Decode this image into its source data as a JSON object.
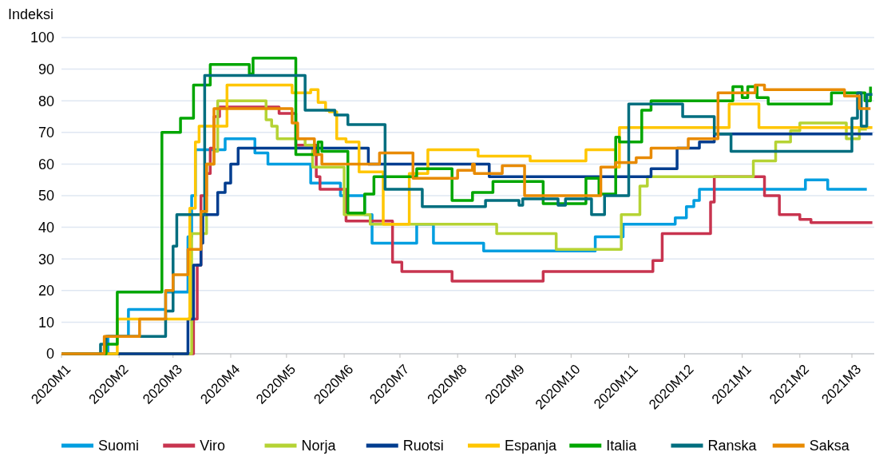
{
  "chart_data": {
    "type": "step",
    "ylabel": "Indeksi",
    "xlim": [
      "2020-01-01",
      "2021-03-13"
    ],
    "xticks": [
      {
        "value": "2020-01-01",
        "label": "2020M1"
      },
      {
        "value": "2020-02-01",
        "label": "2020M2"
      },
      {
        "value": "2020-03-01",
        "label": "2020M3"
      },
      {
        "value": "2020-04-01",
        "label": "2020M4"
      },
      {
        "value": "2020-05-01",
        "label": "2020M5"
      },
      {
        "value": "2020-06-01",
        "label": "2020M6"
      },
      {
        "value": "2020-07-01",
        "label": "2020M7"
      },
      {
        "value": "2020-08-01",
        "label": "2020M8"
      },
      {
        "value": "2020-09-01",
        "label": "2020M9"
      },
      {
        "value": "2020-10-01",
        "label": "2020M10"
      },
      {
        "value": "2020-11-01",
        "label": "2020M11"
      },
      {
        "value": "2020-12-01",
        "label": "2020M12"
      },
      {
        "value": "2021-01-01",
        "label": "2021M1"
      },
      {
        "value": "2021-02-01",
        "label": "2021M2"
      },
      {
        "value": "2021-03-01",
        "label": "2021M3"
      }
    ],
    "ylim": [
      0,
      100
    ],
    "yticks": [
      0,
      10,
      20,
      30,
      40,
      50,
      60,
      70,
      80,
      90,
      100
    ],
    "grid": "y",
    "legend": "bottom",
    "series": [
      {
        "name": "Suomi",
        "color": "#009ee0",
        "x": [
          "2020-01-01",
          "2020-01-26",
          "2020-02-06",
          "2020-02-26",
          "2020-03-09",
          "2020-03-11",
          "2020-03-13",
          "2020-03-29",
          "2020-04-14",
          "2020-04-21",
          "2020-05-14",
          "2020-05-30",
          "2020-06-12",
          "2020-06-16",
          "2020-07-10",
          "2020-07-19",
          "2020-08-15",
          "2020-10-14",
          "2020-10-29",
          "2020-11-26",
          "2020-12-02",
          "2020-12-06",
          "2020-12-09",
          "2021-02-04",
          "2021-02-16",
          "2021-03-09"
        ],
        "values": [
          0,
          5.5,
          14,
          19.5,
          37,
          50,
          64.5,
          68,
          63.5,
          60,
          54,
          50,
          44,
          35,
          41,
          35,
          32.5,
          37,
          41,
          43,
          46.5,
          48.5,
          52,
          55,
          52,
          52
        ]
      },
      {
        "name": "Viro",
        "color": "#c8344f",
        "x": [
          "2020-01-01",
          "2020-03-12",
          "2020-03-14",
          "2020-03-16",
          "2020-03-19",
          "2020-03-21",
          "2020-03-23",
          "2020-03-26",
          "2020-04-27",
          "2020-05-06",
          "2020-05-17",
          "2020-05-19",
          "2020-06-02",
          "2020-06-27",
          "2020-07-02",
          "2020-07-29",
          "2020-09-16",
          "2020-11-14",
          "2020-11-19",
          "2020-12-15",
          "2020-12-17",
          "2021-01-13",
          "2021-01-21",
          "2021-02-01",
          "2021-02-07",
          "2021-03-12"
        ],
        "values": [
          0,
          11,
          28,
          50,
          57,
          65,
          75,
          78,
          76,
          66,
          56,
          52,
          42,
          29,
          26,
          23,
          26,
          29.5,
          38,
          48,
          56,
          50,
          44,
          42.5,
          41.5,
          41.5
        ]
      },
      {
        "name": "Norja",
        "color": "#b5d334",
        "x": [
          "2020-01-01",
          "2020-03-11",
          "2020-03-19",
          "2020-03-23",
          "2020-03-25",
          "2020-04-20",
          "2020-04-23",
          "2020-04-26",
          "2020-05-11",
          "2020-05-15",
          "2020-06-01",
          "2020-06-15",
          "2020-08-22",
          "2020-09-23",
          "2020-10-28",
          "2020-11-07",
          "2020-11-11",
          "2021-01-07",
          "2021-01-19",
          "2021-01-27",
          "2021-02-01",
          "2021-02-26",
          "2021-03-05",
          "2021-03-09"
        ],
        "values": [
          0,
          38,
          60,
          64,
          80,
          74,
          72,
          68,
          66,
          59,
          44,
          41,
          38,
          33,
          44,
          53,
          56,
          61,
          67,
          70.5,
          73,
          68,
          71,
          71
        ]
      },
      {
        "name": "Ruotsi",
        "color": "#003d8f",
        "x": [
          "2020-01-01",
          "2020-03-09",
          "2020-03-12",
          "2020-03-16",
          "2020-03-17",
          "2020-03-25",
          "2020-03-29",
          "2020-04-01",
          "2020-04-05",
          "2020-06-14",
          "2020-08-18",
          "2020-11-13",
          "2020-11-27",
          "2020-12-09",
          "2020-12-17",
          "2021-03-12"
        ],
        "values": [
          0,
          11,
          28,
          35,
          44,
          51,
          54,
          60,
          65,
          60,
          56,
          58.5,
          65,
          67,
          69.5,
          69.5
        ]
      },
      {
        "name": "Espanja",
        "color": "#ffc600",
        "x": [
          "2020-01-01",
          "2020-01-31",
          "2020-03-10",
          "2020-03-13",
          "2020-03-15",
          "2020-03-30",
          "2020-05-04",
          "2020-05-14",
          "2020-05-18",
          "2020-05-22",
          "2020-05-24",
          "2020-05-28",
          "2020-06-02",
          "2020-06-09",
          "2020-06-22",
          "2020-07-06",
          "2020-07-16",
          "2020-08-12",
          "2020-09-09",
          "2020-10-09",
          "2020-10-25",
          "2020-10-27",
          "2020-12-25",
          "2021-01-10",
          "2021-03-12"
        ],
        "values": [
          0,
          11,
          46,
          67,
          72,
          85,
          82.5,
          83.5,
          79.5,
          77,
          76.5,
          68,
          67,
          57.5,
          41,
          57,
          64.5,
          62.5,
          61,
          64.5,
          59,
          71.5,
          79,
          71.5,
          71.5
        ]
      },
      {
        "name": "Italia",
        "color": "#00a600",
        "x": [
          "2020-01-01",
          "2020-01-25",
          "2020-01-31",
          "2020-02-24",
          "2020-03-05",
          "2020-03-12",
          "2020-03-21",
          "2020-04-11",
          "2020-04-13",
          "2020-05-06",
          "2020-05-16",
          "2020-05-18",
          "2020-05-20",
          "2020-06-03",
          "2020-06-12",
          "2020-06-17",
          "2020-07-10",
          "2020-07-29",
          "2020-08-09",
          "2020-08-20",
          "2020-09-16",
          "2020-10-09",
          "2020-10-16",
          "2020-10-25",
          "2020-10-27",
          "2020-11-08",
          "2020-11-13",
          "2020-12-27",
          "2021-01-01",
          "2021-01-04",
          "2021-01-09",
          "2021-01-15",
          "2021-02-18",
          "2021-03-08",
          "2021-03-11"
        ],
        "values": [
          0,
          3,
          19.5,
          70,
          74.5,
          85,
          91.5,
          88.5,
          93.5,
          63,
          63,
          67,
          64,
          44.5,
          50.5,
          56,
          58.5,
          48.5,
          51,
          54.5,
          47.5,
          55.5,
          50.5,
          68.5,
          67,
          77,
          80,
          84.5,
          81,
          84.5,
          81,
          79,
          82.5,
          80,
          84.5
        ]
      },
      {
        "name": "Ranska",
        "color": "#006e7f",
        "x": [
          "2020-01-01",
          "2020-01-22",
          "2020-01-25",
          "2020-02-26",
          "2020-03-01",
          "2020-03-03",
          "2020-03-18",
          "2020-05-11",
          "2020-05-27",
          "2020-06-03",
          "2020-06-23",
          "2020-07-13",
          "2020-08-16",
          "2020-09-03",
          "2020-09-05",
          "2020-09-24",
          "2020-09-28",
          "2020-10-12",
          "2020-10-19",
          "2020-11-01",
          "2020-11-30",
          "2020-12-17",
          "2020-12-26",
          "2021-03-01",
          "2021-03-04",
          "2021-03-06",
          "2021-03-09",
          "2021-03-12"
        ],
        "values": [
          0,
          3,
          5.5,
          13.5,
          34,
          44,
          88,
          77,
          75.5,
          72.5,
          52,
          46.5,
          48.5,
          47,
          49,
          47,
          49,
          44,
          50,
          79,
          75,
          69.5,
          64,
          74.5,
          82.5,
          72,
          82,
          82
        ]
      },
      {
        "name": "Saksa",
        "color": "#e88a00",
        "x": [
          "2020-01-01",
          "2020-01-24",
          "2020-02-12",
          "2020-02-26",
          "2020-03-01",
          "2020-03-09",
          "2020-03-16",
          "2020-03-19",
          "2020-03-23",
          "2020-05-04",
          "2020-05-07",
          "2020-05-16",
          "2020-05-20",
          "2020-06-20",
          "2020-07-08",
          "2020-08-01",
          "2020-08-09",
          "2020-08-10",
          "2020-08-25",
          "2020-09-06",
          "2020-10-17",
          "2020-10-25",
          "2020-11-05",
          "2020-11-13",
          "2020-12-03",
          "2020-12-19",
          "2021-01-08",
          "2021-01-13",
          "2021-02-25",
          "2021-03-05",
          "2021-03-11"
        ],
        "values": [
          0,
          5.5,
          11,
          20,
          25,
          33,
          45,
          60,
          77.5,
          73,
          68,
          63,
          60,
          63.5,
          55.5,
          58,
          60,
          57,
          59.5,
          50,
          59,
          60.5,
          62,
          65,
          68,
          82.5,
          85,
          83.5,
          81.5,
          77.5,
          77.5
        ]
      }
    ]
  }
}
